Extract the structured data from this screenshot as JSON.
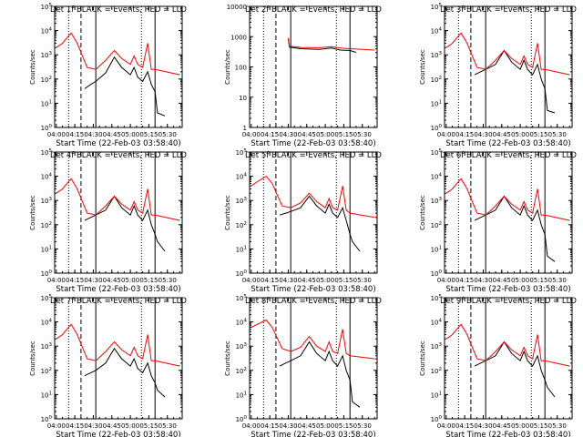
{
  "start_time_text": "Start Time (22-Feb-03 03:58:40)",
  "ylabel": "Counts/sec",
  "legend_text": "BLACK = Events, RED = LLD",
  "colors": {
    "events": "#000000",
    "lld": "#ff0000",
    "background": "#ffffff"
  },
  "x_tick_labels": [
    "04:00",
    "04:15",
    "04:30",
    "04:45",
    "05:00",
    "05:15",
    "05:30"
  ],
  "x_range": [
    "03:58:40",
    "05:42:00"
  ],
  "vertical_markers": [
    {
      "time": "04:10",
      "style": "dotted"
    },
    {
      "time": "04:20",
      "style": "dashed"
    },
    {
      "time": "04:32",
      "style": "solid"
    },
    {
      "time": "05:09",
      "style": "dotted"
    },
    {
      "time": "05:20",
      "style": "solid"
    }
  ],
  "chart_data": [
    {
      "type": "line",
      "panel": 1,
      "title": "Det 1f BLACK = Events, RED = LLD",
      "xlabel": "Start Time (22-Feb-03 03:58:40)",
      "ylabel": "Counts/sec",
      "yscale": "log",
      "ylim": [
        1,
        100000
      ],
      "y_tick_labels": [
        "10^0",
        "10^1",
        "10^2",
        "10^3",
        "10^4",
        "10^5"
      ],
      "series": [
        {
          "name": "Events",
          "color": "#000000",
          "x": [
            "04:23",
            "04:28",
            "04:32",
            "04:40",
            "04:47",
            "04:53",
            "05:00",
            "05:03",
            "05:06",
            "05:10",
            "05:14",
            "05:17",
            "05:20",
            "05:22",
            "05:28"
          ],
          "y": [
            40,
            60,
            80,
            180,
            800,
            300,
            150,
            300,
            120,
            80,
            200,
            60,
            30,
            4,
            3
          ]
        },
        {
          "name": "LLD",
          "color": "#ff0000",
          "x": [
            "04:00",
            "04:05",
            "04:12",
            "04:17",
            "04:25",
            "04:32",
            "04:40",
            "04:47",
            "04:53",
            "05:00",
            "05:03",
            "05:06",
            "05:10",
            "05:14",
            "05:17",
            "05:20",
            "05:40"
          ],
          "y": [
            2000,
            3000,
            8000,
            3000,
            300,
            250,
            600,
            1500,
            700,
            400,
            900,
            400,
            300,
            3000,
            250,
            250,
            150
          ]
        }
      ]
    },
    {
      "type": "line",
      "panel": 2,
      "title": "Det 2f BLACK = Events, RED = LLD",
      "xlabel": "Start Time (22-Feb-03 03:58:40)",
      "ylabel": "Counts/sec",
      "yscale": "log",
      "ylim": [
        1,
        10000
      ],
      "y_tick_labels": [
        "1",
        "10",
        "100",
        "1000",
        "10000"
      ],
      "series": [
        {
          "name": "Events",
          "color": "#000000",
          "x": [
            "04:30",
            "04:31",
            "04:40",
            "04:55",
            "05:05",
            "05:12",
            "05:20",
            "05:25"
          ],
          "y": [
            800,
            450,
            400,
            380,
            420,
            360,
            350,
            300
          ]
        },
        {
          "name": "LLD",
          "color": "#ff0000",
          "x": [
            "04:30",
            "04:31",
            "04:40",
            "04:55",
            "05:05",
            "05:12",
            "05:20",
            "05:40"
          ],
          "y": [
            900,
            480,
            440,
            430,
            470,
            420,
            400,
            360
          ]
        }
      ]
    },
    {
      "type": "line",
      "panel": 3,
      "title": "Det 3f BLACK = Events, RED = LLD",
      "xlabel": "Start Time (22-Feb-03 03:58:40)",
      "ylabel": "Counts/sec",
      "yscale": "log",
      "ylim": [
        1,
        100000
      ],
      "y_tick_labels": [
        "10^0",
        "10^1",
        "10^2",
        "10^3",
        "10^4",
        "10^5"
      ],
      "series": [
        {
          "name": "Events",
          "color": "#000000",
          "x": [
            "04:23",
            "04:28",
            "04:32",
            "04:40",
            "04:47",
            "04:53",
            "05:00",
            "05:03",
            "05:06",
            "05:10",
            "05:14",
            "05:17",
            "05:20",
            "05:22",
            "05:28"
          ],
          "y": [
            150,
            200,
            250,
            400,
            1500,
            500,
            250,
            600,
            250,
            150,
            400,
            100,
            40,
            5,
            4
          ]
        },
        {
          "name": "LLD",
          "color": "#ff0000",
          "x": [
            "04:00",
            "04:05",
            "04:12",
            "04:17",
            "04:25",
            "04:32",
            "04:40",
            "04:47",
            "04:53",
            "05:00",
            "05:03",
            "05:06",
            "05:10",
            "05:14",
            "05:17",
            "05:20",
            "05:40"
          ],
          "y": [
            2000,
            3000,
            8000,
            3000,
            300,
            250,
            600,
            1500,
            700,
            400,
            900,
            400,
            300,
            3000,
            250,
            250,
            150
          ]
        }
      ]
    },
    {
      "type": "line",
      "panel": 4,
      "title": "Det 4f BLACK = Events, RED = LLD",
      "xlabel": "Start Time (22-Feb-03 03:58:40)",
      "ylabel": "Counts/sec",
      "yscale": "log",
      "ylim": [
        1,
        100000
      ],
      "y_tick_labels": [
        "10^0",
        "10^1",
        "10^2",
        "10^3",
        "10^4",
        "10^5"
      ],
      "series": [
        {
          "name": "Events",
          "color": "#000000",
          "x": [
            "04:23",
            "04:28",
            "04:32",
            "04:40",
            "04:47",
            "04:53",
            "05:00",
            "05:03",
            "05:06",
            "05:10",
            "05:14",
            "05:17",
            "05:20",
            "05:22",
            "05:28"
          ],
          "y": [
            150,
            200,
            250,
            400,
            1500,
            500,
            250,
            600,
            250,
            150,
            400,
            100,
            40,
            20,
            8
          ]
        },
        {
          "name": "LLD",
          "color": "#ff0000",
          "x": [
            "04:00",
            "04:05",
            "04:12",
            "04:17",
            "04:25",
            "04:32",
            "04:40",
            "04:47",
            "04:53",
            "05:00",
            "05:03",
            "05:06",
            "05:10",
            "05:14",
            "05:17",
            "05:20",
            "05:40"
          ],
          "y": [
            2000,
            3000,
            8000,
            3000,
            300,
            250,
            600,
            1500,
            700,
            400,
            900,
            400,
            300,
            3000,
            250,
            250,
            150
          ]
        }
      ]
    },
    {
      "type": "line",
      "panel": 5,
      "title": "Det 5f BLACK = Events, RED = LLD",
      "xlabel": "Start Time (22-Feb-03 03:58:40)",
      "ylabel": "Counts/sec",
      "yscale": "log",
      "ylim": [
        1,
        100000
      ],
      "y_tick_labels": [
        "10^0",
        "10^1",
        "10^2",
        "10^3",
        "10^4",
        "10^5"
      ],
      "series": [
        {
          "name": "Events",
          "color": "#000000",
          "x": [
            "04:23",
            "04:28",
            "04:32",
            "04:40",
            "04:47",
            "04:53",
            "05:00",
            "05:03",
            "05:06",
            "05:10",
            "05:14",
            "05:17",
            "05:20",
            "05:22",
            "05:28"
          ],
          "y": [
            250,
            300,
            350,
            500,
            1500,
            600,
            300,
            700,
            300,
            200,
            500,
            150,
            40,
            20,
            8
          ]
        },
        {
          "name": "LLD",
          "color": "#ff0000",
          "x": [
            "04:00",
            "04:05",
            "04:12",
            "04:17",
            "04:25",
            "04:32",
            "04:40",
            "04:47",
            "04:53",
            "05:00",
            "05:03",
            "05:06",
            "05:10",
            "05:14",
            "05:17",
            "05:20",
            "05:40"
          ],
          "y": [
            4000,
            6000,
            10000,
            5000,
            600,
            500,
            800,
            2000,
            900,
            500,
            1200,
            500,
            400,
            4000,
            400,
            300,
            200
          ]
        }
      ]
    },
    {
      "type": "line",
      "panel": 6,
      "title": "Det 6f BLACK = Events, RED = LLD",
      "xlabel": "Start Time (22-Feb-03 03:58:40)",
      "ylabel": "Counts/sec",
      "yscale": "log",
      "ylim": [
        1,
        100000
      ],
      "y_tick_labels": [
        "10^0",
        "10^1",
        "10^2",
        "10^3",
        "10^4",
        "10^5"
      ],
      "series": [
        {
          "name": "Events",
          "color": "#000000",
          "x": [
            "04:23",
            "04:28",
            "04:32",
            "04:40",
            "04:47",
            "04:53",
            "05:00",
            "05:03",
            "05:06",
            "05:10",
            "05:14",
            "05:17",
            "05:20",
            "05:22",
            "05:28"
          ],
          "y": [
            150,
            200,
            250,
            400,
            1500,
            500,
            250,
            600,
            250,
            150,
            400,
            100,
            40,
            5,
            3
          ]
        },
        {
          "name": "LLD",
          "color": "#ff0000",
          "x": [
            "04:00",
            "04:05",
            "04:12",
            "04:17",
            "04:25",
            "04:32",
            "04:40",
            "04:47",
            "04:53",
            "05:00",
            "05:03",
            "05:06",
            "05:10",
            "05:14",
            "05:17",
            "05:20",
            "05:40"
          ],
          "y": [
            2000,
            3000,
            8000,
            3000,
            300,
            250,
            600,
            1500,
            700,
            400,
            900,
            400,
            300,
            3000,
            250,
            250,
            150
          ]
        }
      ]
    },
    {
      "type": "line",
      "panel": 7,
      "title": "Det 7f BLACK = Events, RED = LLD",
      "xlabel": "Start Time (22-Feb-03 03:58:40)",
      "ylabel": "Counts/sec",
      "yscale": "log",
      "ylim": [
        1,
        100000
      ],
      "y_tick_labels": [
        "10^0",
        "10^1",
        "10^2",
        "10^3",
        "10^4",
        "10^5"
      ],
      "series": [
        {
          "name": "Events",
          "color": "#000000",
          "x": [
            "04:23",
            "04:28",
            "04:32",
            "04:40",
            "04:47",
            "04:53",
            "05:00",
            "05:03",
            "05:06",
            "05:10",
            "05:14",
            "05:17",
            "05:20",
            "05:22",
            "05:28"
          ],
          "y": [
            60,
            80,
            100,
            200,
            800,
            300,
            150,
            300,
            120,
            80,
            200,
            60,
            30,
            15,
            8
          ]
        },
        {
          "name": "LLD",
          "color": "#ff0000",
          "x": [
            "04:00",
            "04:05",
            "04:12",
            "04:17",
            "04:25",
            "04:32",
            "04:40",
            "04:47",
            "04:53",
            "05:00",
            "05:03",
            "05:06",
            "05:10",
            "05:14",
            "05:17",
            "05:20",
            "05:40"
          ],
          "y": [
            2000,
            3000,
            8000,
            3000,
            300,
            250,
            600,
            1500,
            700,
            400,
            900,
            400,
            300,
            3000,
            250,
            250,
            150
          ]
        }
      ]
    },
    {
      "type": "line",
      "panel": 8,
      "title": "Det 8f BLACK = Events, RED = LLD",
      "xlabel": "Start Time (22-Feb-03 03:58:40)",
      "ylabel": "Counts/sec",
      "yscale": "log",
      "ylim": [
        1,
        100000
      ],
      "y_tick_labels": [
        "10^0",
        "10^1",
        "10^2",
        "10^3",
        "10^4",
        "10^5"
      ],
      "series": [
        {
          "name": "Events",
          "color": "#000000",
          "x": [
            "04:23",
            "04:28",
            "04:32",
            "04:40",
            "04:47",
            "04:53",
            "05:00",
            "05:03",
            "05:06",
            "05:10",
            "05:14",
            "05:17",
            "05:20",
            "05:22",
            "05:28"
          ],
          "y": [
            150,
            200,
            250,
            400,
            1500,
            500,
            250,
            600,
            250,
            150,
            400,
            100,
            40,
            5,
            3
          ]
        },
        {
          "name": "LLD",
          "color": "#ff0000",
          "x": [
            "04:00",
            "04:05",
            "04:12",
            "04:17",
            "04:25",
            "04:32",
            "04:40",
            "04:47",
            "04:53",
            "05:00",
            "05:03",
            "05:06",
            "05:10",
            "05:14",
            "05:17",
            "05:20",
            "05:40"
          ],
          "y": [
            6000,
            8000,
            12000,
            6000,
            800,
            600,
            900,
            2500,
            1000,
            600,
            1500,
            600,
            500,
            5000,
            500,
            400,
            300
          ]
        }
      ]
    },
    {
      "type": "line",
      "panel": 9,
      "title": "Det 9f BLACK = Events, RED = LLD",
      "xlabel": "Start Time (22-Feb-03 03:58:40)",
      "ylabel": "Counts/sec",
      "yscale": "log",
      "ylim": [
        1,
        100000
      ],
      "y_tick_labels": [
        "10^0",
        "10^1",
        "10^2",
        "10^3",
        "10^4",
        "10^5"
      ],
      "series": [
        {
          "name": "Events",
          "color": "#000000",
          "x": [
            "04:23",
            "04:28",
            "04:32",
            "04:40",
            "04:47",
            "04:53",
            "05:00",
            "05:03",
            "05:06",
            "05:10",
            "05:14",
            "05:17",
            "05:20",
            "05:22",
            "05:28"
          ],
          "y": [
            150,
            200,
            250,
            400,
            1500,
            500,
            250,
            600,
            250,
            150,
            400,
            100,
            40,
            20,
            8
          ]
        },
        {
          "name": "LLD",
          "color": "#ff0000",
          "x": [
            "04:00",
            "04:05",
            "04:12",
            "04:17",
            "04:25",
            "04:32",
            "04:40",
            "04:47",
            "04:53",
            "05:00",
            "05:03",
            "05:06",
            "05:10",
            "05:14",
            "05:17",
            "05:20",
            "05:40"
          ],
          "y": [
            2000,
            3000,
            8000,
            3000,
            300,
            250,
            600,
            1500,
            700,
            400,
            900,
            400,
            300,
            3000,
            250,
            250,
            150
          ]
        }
      ]
    }
  ]
}
